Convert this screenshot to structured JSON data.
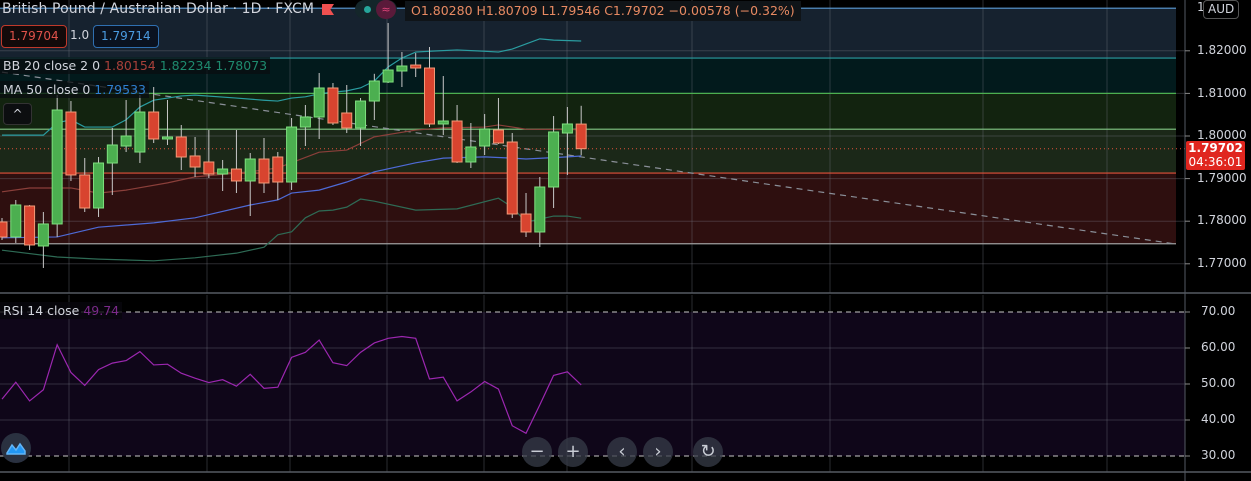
{
  "header": {
    "symbol_title": "British Pound / Australian Dollar · 1D · FXCM",
    "ohlc": "O1.80280  H1.80709  L1.79546  C1.79702  −0.00578 (−0.32%)",
    "flag_icon": "flag-icon",
    "market_status_icon": "green-dot-icon",
    "replay_icon": "approx-icon"
  },
  "trade": {
    "sell_price": "1.79704",
    "quantity": "1.0",
    "buy_price": "1.79714"
  },
  "indicators": {
    "bb": {
      "label": "BB 20 close 2 0",
      "basis": "1.80154",
      "upper": "1.82234",
      "lower": "1.78073"
    },
    "ma": {
      "label": "MA 50 close 0",
      "value": "1.79533"
    },
    "rsi": {
      "label": "RSI 14 close",
      "value": "49.74"
    }
  },
  "price_axis": {
    "currency": "AUD",
    "top_label": "1.",
    "ticks": [
      "1.82000",
      "1.81000",
      "1.80000",
      "1.79000",
      "1.78000",
      "1.77000"
    ],
    "current_price": "1.79702",
    "countdown": "04:36:01"
  },
  "rsi_axis": {
    "ticks": [
      "70.00",
      "60.00",
      "50.00",
      "40.00",
      "30.00"
    ]
  },
  "controls": {
    "collapse": "^",
    "zoom_out": "−",
    "zoom_in": "+",
    "scroll_left": "‹",
    "scroll_right": "›",
    "reset": "↻"
  },
  "colors": {
    "up": "#4caf50",
    "down": "#d8442f",
    "bb_upper": "#2a9ca0",
    "bb_basis": "#8b3f3a",
    "bb_lower": "#2e6b55",
    "ma": "#4e6ad6",
    "rsi": "#9c27b0",
    "current_price": "#e0261f"
  },
  "chart_data": {
    "type": "candlestick",
    "price_range": [
      1.765,
      1.832
    ],
    "candles": [
      [
        1.77982,
        1.78075,
        1.77559,
        1.77629
      ],
      [
        1.7763,
        1.78498,
        1.77489,
        1.78381
      ],
      [
        1.78357,
        1.78381,
        1.77324,
        1.77442
      ],
      [
        1.77418,
        1.78216,
        1.76902,
        1.77935
      ],
      [
        1.77935,
        1.80962,
        1.7763,
        1.8061
      ],
      [
        1.80563,
        1.80821,
        1.78944,
        1.79085
      ],
      [
        1.79085,
        1.79484,
        1.78216,
        1.7831
      ],
      [
        1.7831,
        1.79507,
        1.78099,
        1.79366
      ],
      [
        1.79366,
        1.80188,
        1.78615,
        1.79789
      ],
      [
        1.79765,
        1.80845,
        1.79624,
        1.8
      ],
      [
        1.79624,
        1.80962,
        1.79366,
        1.80563
      ],
      [
        1.80563,
        1.8115,
        1.79836,
        1.7993
      ],
      [
        1.7993,
        1.80845,
        1.79789,
        1.79977
      ],
      [
        1.79977,
        1.80258,
        1.79202,
        1.79507
      ],
      [
        1.79531,
        1.79977,
        1.79038,
        1.79272
      ],
      [
        1.7939,
        1.80141,
        1.79014,
        1.79108
      ],
      [
        1.79108,
        1.79437,
        1.78709,
        1.79225
      ],
      [
        1.79225,
        1.80141,
        1.78662,
        1.78944
      ],
      [
        1.78944,
        1.79601,
        1.78122,
        1.7946
      ],
      [
        1.7946,
        1.79953,
        1.78662,
        1.78897
      ],
      [
        1.79507,
        1.79624,
        1.78498,
        1.7892
      ],
      [
        1.7892,
        1.80422,
        1.78733,
        1.80211
      ],
      [
        1.80211,
        1.80728,
        1.79765,
        1.80446
      ],
      [
        1.80446,
        1.81479,
        1.7993,
        1.81127
      ],
      [
        1.81127,
        1.81244,
        1.80258,
        1.80305
      ],
      [
        1.8054,
        1.81197,
        1.8007,
        1.80188
      ],
      [
        1.80188,
        1.80892,
        1.79765,
        1.80821
      ],
      [
        1.80821,
        1.8146,
        1.80376,
        1.81291
      ],
      [
        1.81267,
        1.82652,
        1.81244,
        1.81549
      ],
      [
        1.81526,
        1.81971,
        1.8115,
        1.81643
      ],
      [
        1.81666,
        1.81948,
        1.81385,
        1.81596
      ],
      [
        1.81596,
        1.82089,
        1.80211,
        1.80282
      ],
      [
        1.80282,
        1.81408,
        1.80023,
        1.80352
      ],
      [
        1.80352,
        1.80728,
        1.79366,
        1.7939
      ],
      [
        1.7939,
        1.80305,
        1.79249,
        1.79742
      ],
      [
        1.79765,
        1.80516,
        1.79554,
        1.80164
      ],
      [
        1.80141,
        1.80892,
        1.79812,
        1.79836
      ],
      [
        1.79859,
        1.8007,
        1.78075,
        1.78169
      ],
      [
        1.78169,
        1.78662,
        1.77629,
        1.77747
      ],
      [
        1.77747,
        1.79038,
        1.77395,
        1.78803
      ],
      [
        1.78803,
        1.80469,
        1.7831,
        1.80094
      ],
      [
        1.8007,
        1.80681,
        1.79085,
        1.80282
      ],
      [
        1.8028,
        1.80709,
        1.79546,
        1.79702
      ]
    ],
    "bb_upper": [
      [
        0,
        1.8002
      ],
      [
        3,
        1.8002
      ],
      [
        4,
        1.8031
      ],
      [
        5,
        1.8038
      ],
      [
        6,
        1.8021
      ],
      [
        8,
        1.8021
      ],
      [
        9,
        1.8038
      ],
      [
        10,
        1.8068
      ],
      [
        11,
        1.8084
      ],
      [
        13,
        1.8094
      ],
      [
        14,
        1.8096
      ],
      [
        17,
        1.8089
      ],
      [
        19,
        1.8084
      ],
      [
        20,
        1.8082
      ],
      [
        21,
        1.8089
      ],
      [
        22,
        1.8092
      ],
      [
        23,
        1.8099
      ],
      [
        24,
        1.8103
      ],
      [
        25,
        1.8106
      ],
      [
        26,
        1.8113
      ],
      [
        27,
        1.8129
      ],
      [
        28,
        1.8162
      ],
      [
        29,
        1.8183
      ],
      [
        30,
        1.8197
      ],
      [
        31,
        1.8199
      ],
      [
        33,
        1.8202
      ],
      [
        35,
        1.8199
      ],
      [
        36,
        1.8197
      ],
      [
        37,
        1.8204
      ],
      [
        38,
        1.8216
      ],
      [
        39,
        1.8228
      ],
      [
        40,
        1.8225
      ],
      [
        42,
        1.8223
      ]
    ],
    "bb_basis": [
      [
        0,
        1.7869
      ],
      [
        2,
        1.7878
      ],
      [
        5,
        1.7878
      ],
      [
        7,
        1.7866
      ],
      [
        9,
        1.7873
      ],
      [
        12,
        1.789
      ],
      [
        14,
        1.7904
      ],
      [
        18,
        1.7916
      ],
      [
        20,
        1.7925
      ],
      [
        23,
        1.7962
      ],
      [
        25,
        1.7967
      ],
      [
        27,
        1.7998
      ],
      [
        30,
        1.8014
      ],
      [
        32,
        1.8019
      ],
      [
        35,
        1.8021
      ],
      [
        36,
        1.8026
      ],
      [
        38,
        1.8016
      ],
      [
        42,
        1.8015
      ]
    ],
    "bb_lower": [
      [
        0,
        1.7732
      ],
      [
        4,
        1.7716
      ],
      [
        7,
        1.7711
      ],
      [
        11,
        1.7707
      ],
      [
        14,
        1.7714
      ],
      [
        17,
        1.7725
      ],
      [
        19,
        1.7739
      ],
      [
        20,
        1.7768
      ],
      [
        21,
        1.7775
      ],
      [
        22,
        1.7808
      ],
      [
        23,
        1.7824
      ],
      [
        24,
        1.7826
      ],
      [
        25,
        1.7833
      ],
      [
        26,
        1.7852
      ],
      [
        27,
        1.7847
      ],
      [
        30,
        1.7826
      ],
      [
        33,
        1.7829
      ],
      [
        36,
        1.7854
      ],
      [
        37,
        1.7833
      ],
      [
        38,
        1.7798
      ],
      [
        40,
        1.7812
      ],
      [
        41,
        1.7812
      ],
      [
        42,
        1.7807
      ]
    ],
    "ma50": [
      [
        0,
        1.7761
      ],
      [
        4,
        1.7763
      ],
      [
        7,
        1.7786
      ],
      [
        11,
        1.7796
      ],
      [
        14,
        1.7808
      ],
      [
        18,
        1.7838
      ],
      [
        20,
        1.785
      ],
      [
        21,
        1.7866
      ],
      [
        23,
        1.7873
      ],
      [
        25,
        1.7892
      ],
      [
        27,
        1.7916
      ],
      [
        30,
        1.7937
      ],
      [
        32,
        1.7948
      ],
      [
        35,
        1.7951
      ],
      [
        37,
        1.7948
      ],
      [
        38,
        1.7946
      ],
      [
        41,
        1.7951
      ],
      [
        42,
        1.7953
      ]
    ],
    "levels": [
      {
        "price": 1.83,
        "color": "#5b9bd5",
        "fill": "#16222f"
      },
      {
        "price": 1.8183,
        "color": "#2a9ca0",
        "fill": "#021a1c"
      },
      {
        "price": 1.81,
        "color": "#4caf50",
        "fill": "#12230f"
      },
      {
        "price": 1.8016,
        "color": "#81c784",
        "fill": "#1b2818"
      },
      {
        "price": 1.7913,
        "color": "#e0523a",
        "fill": "#2e0f0f"
      },
      {
        "price": 1.7747,
        "color": "#9e9e9e",
        "fill": null
      }
    ],
    "trendline": {
      "start": [
        0,
        1.815
      ],
      "end": [
        85,
        1.7747
      ]
    },
    "rsi": [
      45.8,
      50.5,
      45.3,
      48.4,
      60.9,
      53.2,
      49.6,
      54.0,
      55.8,
      56.5,
      59.0,
      55.3,
      55.5,
      53.0,
      51.6,
      50.4,
      51.2,
      49.4,
      52.7,
      48.8,
      49.1,
      57.4,
      58.8,
      62.2,
      55.9,
      55.1,
      58.8,
      61.4,
      62.7,
      63.2,
      62.7,
      51.4,
      51.9,
      45.3,
      47.8,
      50.7,
      48.6,
      38.4,
      36.3,
      44.2,
      52.4,
      53.4,
      49.74
    ],
    "rsi_range": [
      20,
      75
    ],
    "rsi_bands": [
      70,
      30
    ],
    "grid": true
  }
}
